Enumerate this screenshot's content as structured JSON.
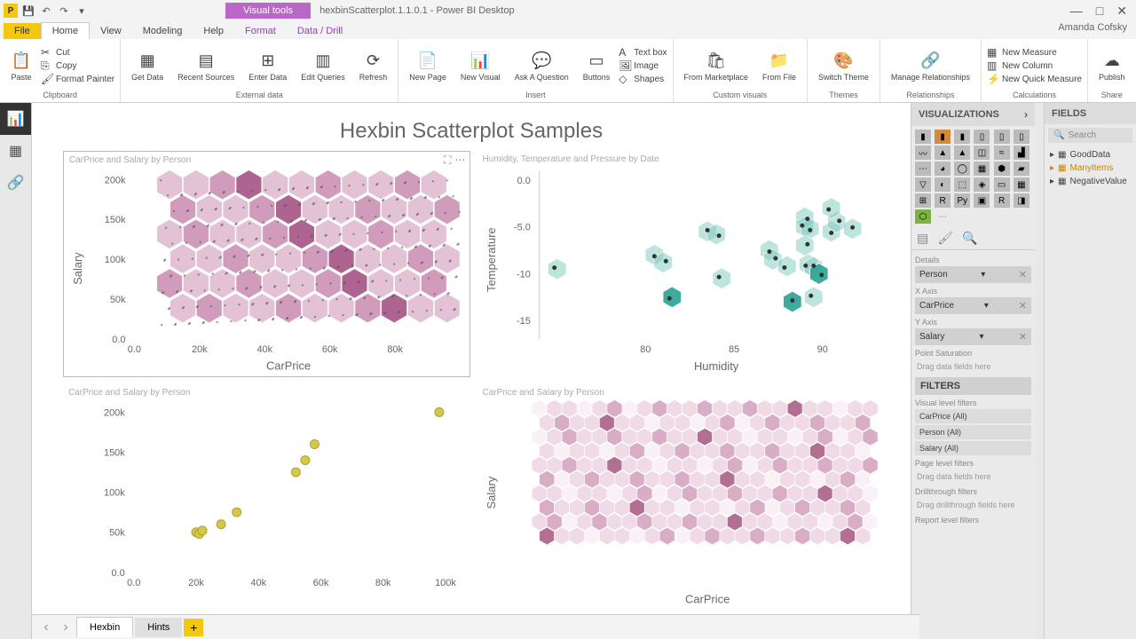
{
  "window": {
    "title": "hexbinScatterplot.1.1.0.1 - Power BI Desktop",
    "visual_tools": "Visual tools",
    "user": "Amanda Cofsky"
  },
  "menu": {
    "file": "File",
    "home": "Home",
    "view": "View",
    "modeling": "Modeling",
    "help": "Help",
    "format": "Format",
    "datadrill": "Data / Drill"
  },
  "ribbon": {
    "clipboard": {
      "paste": "Paste",
      "cut": "Cut",
      "copy": "Copy",
      "fmtpainter": "Format Painter",
      "group": "Clipboard"
    },
    "external": {
      "getdata": "Get Data",
      "recent": "Recent Sources",
      "enter": "Enter Data",
      "edit": "Edit Queries",
      "refresh": "Refresh",
      "group": "External data"
    },
    "insert": {
      "newpage": "New Page",
      "newvisual": "New Visual",
      "askq": "Ask A Question",
      "buttons": "Buttons",
      "textbox": "Text box",
      "image": "Image",
      "shapes": "Shapes",
      "group": "Insert"
    },
    "custom": {
      "market": "From Marketplace",
      "file": "From File",
      "group": "Custom visuals"
    },
    "themes": {
      "switch": "Switch Theme",
      "group": "Themes"
    },
    "rel": {
      "manage": "Manage Relationships",
      "group": "Relationships"
    },
    "calc": {
      "newmeasure": "New Measure",
      "newcol": "New Column",
      "newquick": "New Quick Measure",
      "group": "Calculations"
    },
    "share": {
      "publish": "Publish",
      "group": "Share"
    }
  },
  "canvas": {
    "title": "Hexbin Scatterplot Samples",
    "chart1": {
      "header": "CarPrice and Salary by Person",
      "xlabel": "CarPrice",
      "ylabel": "Salary",
      "xticks": [
        {
          "v": 0,
          "l": "0.0"
        },
        {
          "v": 20,
          "l": "20k"
        },
        {
          "v": 40,
          "l": "40k"
        },
        {
          "v": 60,
          "l": "60k"
        },
        {
          "v": 80,
          "l": "80k"
        }
      ],
      "yticks": [
        {
          "v": 0,
          "l": "0.0"
        },
        {
          "v": 50,
          "l": "50k"
        },
        {
          "v": 100,
          "l": "100k"
        },
        {
          "v": 150,
          "l": "150k"
        },
        {
          "v": 200,
          "l": "200k"
        }
      ],
      "xlim": [
        0,
        100
      ],
      "ylim": [
        0,
        210
      ],
      "hexcolor_light": "#e0b8ce",
      "hexcolor_mid": "#c98bb0",
      "hexcolor_dark": "#a04a7e",
      "dot_color": "#555"
    },
    "chart2": {
      "header": "Humidity, Temperature and Pressure by Date",
      "xlabel": "Humidity",
      "ylabel": "Temperature",
      "xticks": [
        {
          "v": 80,
          "l": "80"
        },
        {
          "v": 85,
          "l": "85"
        },
        {
          "v": 90,
          "l": "90"
        }
      ],
      "yticks": [
        {
          "v": 0,
          "l": "0.0"
        },
        {
          "v": -5,
          "l": "-5.0"
        },
        {
          "v": -10,
          "l": "-10"
        },
        {
          "v": -15,
          "l": "-15"
        }
      ],
      "hexcolor": "#7fcbbf",
      "hexcolor_dark": "#2aa394",
      "dot_color": "#333",
      "points": [
        {
          "x": 75,
          "y": -9.5
        },
        {
          "x": 80.5,
          "y": -8
        },
        {
          "x": 81,
          "y": -8.8
        },
        {
          "x": 81.5,
          "y": -12.5
        },
        {
          "x": 83.5,
          "y": -5.5
        },
        {
          "x": 84,
          "y": -5.8
        },
        {
          "x": 84.3,
          "y": -10.5
        },
        {
          "x": 87,
          "y": -7.5
        },
        {
          "x": 87.2,
          "y": -8.5
        },
        {
          "x": 88,
          "y": -9.2
        },
        {
          "x": 88.3,
          "y": -13
        },
        {
          "x": 89,
          "y": -4
        },
        {
          "x": 89,
          "y": -5
        },
        {
          "x": 89.3,
          "y": -5.2
        },
        {
          "x": 89,
          "y": -7
        },
        {
          "x": 89.2,
          "y": -9
        },
        {
          "x": 89.5,
          "y": -9.3
        },
        {
          "x": 89.8,
          "y": -10
        },
        {
          "x": 89.5,
          "y": -12.5
        },
        {
          "x": 90.5,
          "y": -5.5
        },
        {
          "x": 90.8,
          "y": -4.5
        },
        {
          "x": 90.5,
          "y": -3
        },
        {
          "x": 91.7,
          "y": -5.2
        }
      ]
    },
    "chart3": {
      "header": "CarPrice and Salary by Person",
      "xticks": [
        {
          "v": 0,
          "l": "0.0"
        },
        {
          "v": 20,
          "l": "20k"
        },
        {
          "v": 40,
          "l": "40k"
        },
        {
          "v": 60,
          "l": "60k"
        },
        {
          "v": 80,
          "l": "80k"
        },
        {
          "v": 100,
          "l": "100k"
        }
      ],
      "yticks": [
        {
          "v": 0,
          "l": "0.0"
        },
        {
          "v": 50,
          "l": "50k"
        },
        {
          "v": 100,
          "l": "100k"
        },
        {
          "v": 150,
          "l": "150k"
        },
        {
          "v": 200,
          "l": "200k"
        }
      ],
      "xlim": [
        0,
        105
      ],
      "ylim": [
        0,
        210
      ],
      "dot_color": "#d4c74a",
      "dot_stroke": "#b0a030",
      "points": [
        {
          "x": 20,
          "y": 50
        },
        {
          "x": 21,
          "y": 48
        },
        {
          "x": 22,
          "y": 52
        },
        {
          "x": 28,
          "y": 60
        },
        {
          "x": 33,
          "y": 75
        },
        {
          "x": 52,
          "y": 125
        },
        {
          "x": 55,
          "y": 140
        },
        {
          "x": 58,
          "y": 160
        },
        {
          "x": 98,
          "y": 200
        }
      ]
    },
    "chart4": {
      "header": "CarPrice and Salary by Person",
      "xlabel": "CarPrice",
      "ylabel": "Salary",
      "hexcolor_light": "#eed4e1",
      "hexcolor_mid": "#d29fbc",
      "hexcolor_dark": "#a5577f"
    }
  },
  "viz": {
    "header": "VISUALIZATIONS",
    "wells": {
      "details": "Details",
      "details_val": "Person",
      "xaxis": "X Axis",
      "xaxis_val": "CarPrice",
      "yaxis": "Y Axis",
      "yaxis_val": "Salary",
      "saturation": "Point Saturation",
      "placeholder": "Drag data fields here"
    },
    "filters": {
      "header": "FILTERS",
      "visual": "Visual level filters",
      "carprice": "CarPrice (All)",
      "person": "Person (All)",
      "salary": "Salary (All)",
      "page": "Page level filters",
      "page_ph": "Drag data fields here",
      "drill": "Drillthrough filters",
      "drill_ph": "Drag drillthrough fields here",
      "report": "Report level filters"
    }
  },
  "fields": {
    "header": "FIELDS",
    "search": "Search",
    "tables": [
      {
        "name": "GoodData"
      },
      {
        "name": "ManyItems",
        "orange": true
      },
      {
        "name": "NegativeValue"
      }
    ]
  },
  "pages": {
    "tab1": "Hexbin",
    "tab2": "Hints"
  }
}
